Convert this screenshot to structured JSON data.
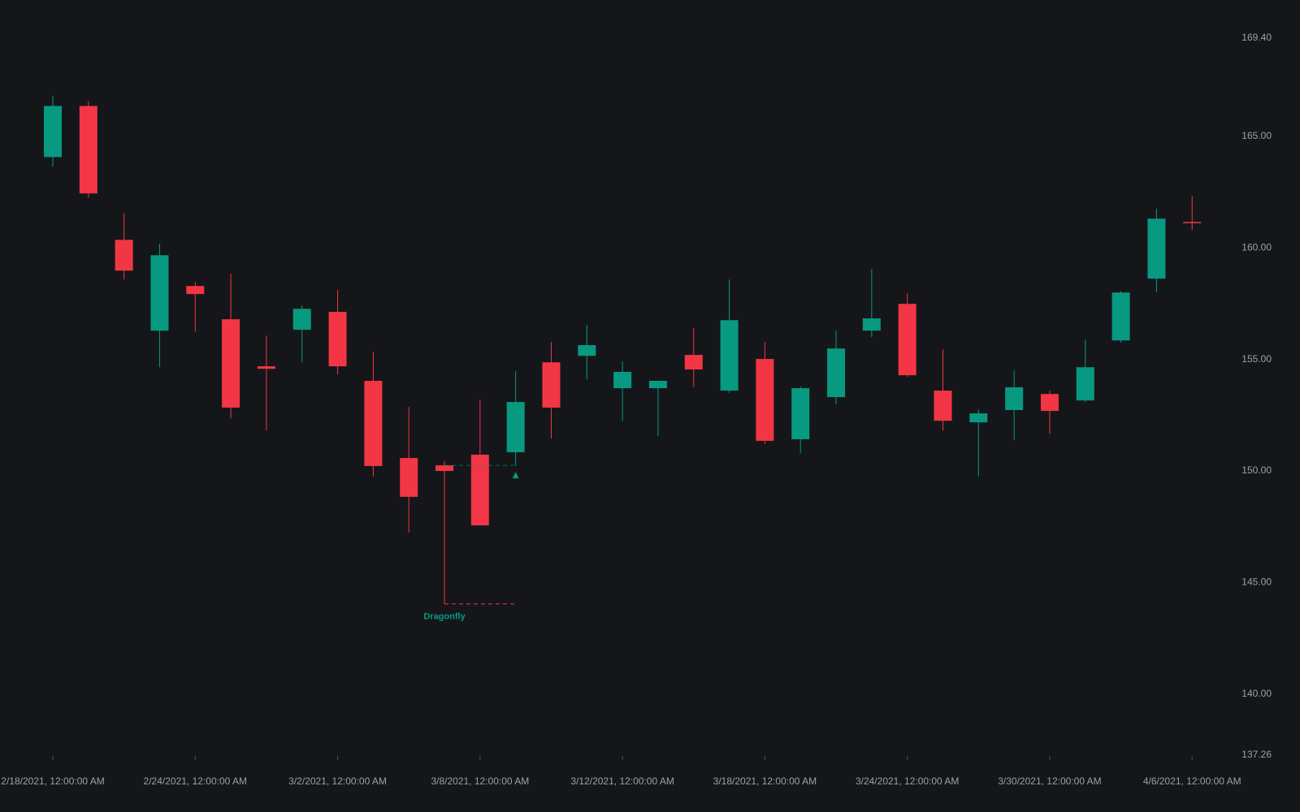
{
  "chart_data": {
    "type": "candlestick",
    "categories": [
      "2/18/2021, 12:00:00 AM",
      null,
      null,
      null,
      "2/24/2021, 12:00:00 AM",
      null,
      null,
      null,
      "3/2/2021, 12:00:00 AM",
      null,
      null,
      null,
      "3/8/2021, 12:00:00 AM",
      null,
      null,
      null,
      "3/12/2021, 12:00:00 AM",
      null,
      null,
      null,
      "3/18/2021, 12:00:00 AM",
      null,
      null,
      null,
      "3/24/2021, 12:00:00 AM",
      null,
      null,
      null,
      "3/30/2021, 12:00:00 AM",
      null,
      null,
      null,
      "4/6/2021, 12:00:00 AM"
    ],
    "open": [
      164.07,
      166.36,
      160.36,
      156.29,
      158.29,
      156.8,
      154.69,
      156.33,
      157.13,
      154.04,
      150.58,
      150.25,
      150.73,
      150.84,
      154.87,
      155.16,
      153.71,
      153.71,
      155.2,
      153.6,
      155.02,
      151.42,
      153.31,
      156.29,
      157.49,
      153.6,
      152.18,
      152.73,
      153.45,
      153.16,
      155.85,
      158.62,
      161.16
    ],
    "high": [
      166.8,
      166.58,
      161.56,
      160.18,
      158.47,
      158.84,
      156.07,
      157.42,
      158.11,
      155.35,
      152.87,
      150.44,
      153.2,
      154.47,
      155.78,
      156.55,
      154.91,
      154.04,
      156.4,
      158.58,
      155.78,
      153.78,
      156.29,
      159.05,
      157.96,
      155.45,
      152.76,
      154.51,
      153.6,
      155.89,
      158.07,
      161.75,
      162.33
    ],
    "low": [
      163.64,
      162.25,
      158.58,
      154.65,
      156.25,
      152.36,
      151.82,
      154.87,
      154.33,
      149.75,
      147.24,
      144.04,
      147.56,
      150.22,
      151.45,
      154.11,
      152.25,
      151.56,
      153.75,
      153.49,
      151.2,
      150.8,
      152.98,
      156.0,
      154.22,
      151.82,
      149.75,
      151.38,
      151.67,
      153.09,
      155.75,
      158.0,
      160.8
    ],
    "close": [
      166.36,
      162.44,
      158.98,
      159.67,
      157.93,
      152.84,
      154.58,
      157.27,
      154.69,
      150.22,
      148.84,
      150.0,
      147.56,
      153.09,
      152.84,
      155.64,
      154.44,
      154.04,
      154.55,
      156.76,
      151.35,
      153.71,
      155.49,
      156.84,
      154.29,
      152.25,
      152.58,
      153.75,
      152.69,
      154.65,
      158.0,
      161.31,
      161.13
    ],
    "up_color": "#089981",
    "down_color": "#f23645",
    "ylim": [
      137.26,
      169.4
    ],
    "yticks": [
      {
        "value": 137.26,
        "label": "137.26"
      },
      {
        "value": 140,
        "label": "140.00"
      },
      {
        "value": 145,
        "label": "145.00"
      },
      {
        "value": 150,
        "label": "150.00"
      },
      {
        "value": 155,
        "label": "155.00"
      },
      {
        "value": 160,
        "label": "160.00"
      },
      {
        "value": 165,
        "label": "165.00"
      },
      {
        "value": 169.4,
        "label": "169.40"
      }
    ],
    "annotation": "Dragonfly"
  }
}
